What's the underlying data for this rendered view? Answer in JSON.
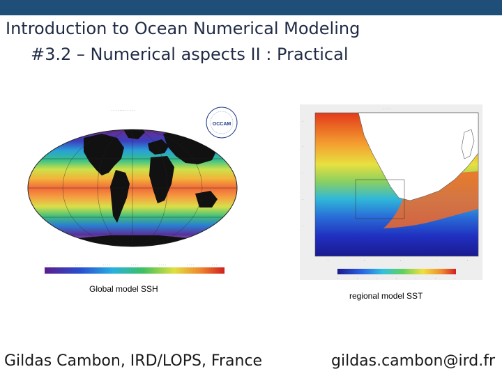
{
  "colors": {
    "top_bar": "#1f4e79",
    "title_text": "#1f2a44"
  },
  "title": {
    "line1": "Introduction to Ocean Numerical Modeling",
    "line2": "#3.2 – Numerical aspects II  : Practical"
  },
  "figures": {
    "global": {
      "caption": "Global  model SSH",
      "logo_text": "OCCAM"
    },
    "regional": {
      "caption": "regional model SST"
    }
  },
  "footer": {
    "author": "Gildas Cambon, IRD/LOPS, France",
    "email": "gildas.cambon@ird.fr"
  }
}
